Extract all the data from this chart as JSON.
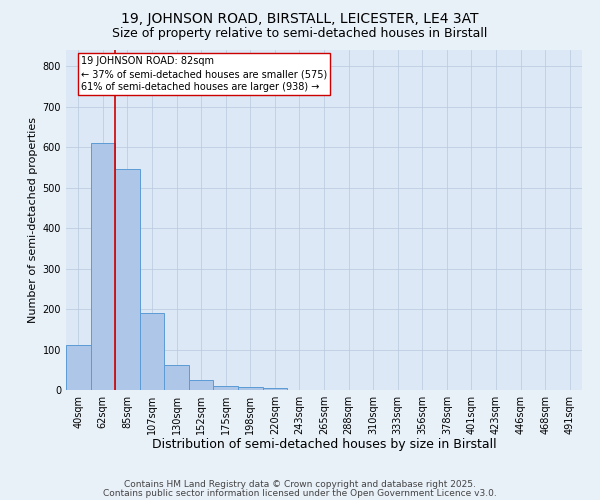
{
  "title1": "19, JOHNSON ROAD, BIRSTALL, LEICESTER, LE4 3AT",
  "title2": "Size of property relative to semi-detached houses in Birstall",
  "xlabel": "Distribution of semi-detached houses by size in Birstall",
  "ylabel": "Number of semi-detached properties",
  "categories": [
    "40sqm",
    "62sqm",
    "85sqm",
    "107sqm",
    "130sqm",
    "152sqm",
    "175sqm",
    "198sqm",
    "220sqm",
    "243sqm",
    "265sqm",
    "288sqm",
    "310sqm",
    "333sqm",
    "356sqm",
    "378sqm",
    "401sqm",
    "423sqm",
    "446sqm",
    "468sqm",
    "491sqm"
  ],
  "values": [
    110,
    610,
    545,
    190,
    63,
    25,
    10,
    7,
    4,
    0,
    0,
    0,
    0,
    0,
    0,
    0,
    0,
    0,
    0,
    0,
    0
  ],
  "bar_color": "#aec6e8",
  "bar_edge_color": "#5b9bd5",
  "property_line_x": 1.5,
  "property_line_color": "#cc0000",
  "annotation_text": "19 JOHNSON ROAD: 82sqm\n← 37% of semi-detached houses are smaller (575)\n61% of semi-detached houses are larger (938) →",
  "annotation_box_color": "#ffffff",
  "annotation_box_edge": "#cc0000",
  "footer1": "Contains HM Land Registry data © Crown copyright and database right 2025.",
  "footer2": "Contains public sector information licensed under the Open Government Licence v3.0.",
  "plot_bg_color": "#dce8f5",
  "fig_bg_color": "#e8f0f8",
  "ylim": [
    0,
    840
  ],
  "yticks": [
    0,
    100,
    200,
    300,
    400,
    500,
    600,
    700,
    800
  ],
  "title1_fontsize": 10,
  "title2_fontsize": 9,
  "xlabel_fontsize": 9,
  "ylabel_fontsize": 8,
  "tick_fontsize": 7,
  "annot_fontsize": 7,
  "footer_fontsize": 6.5
}
